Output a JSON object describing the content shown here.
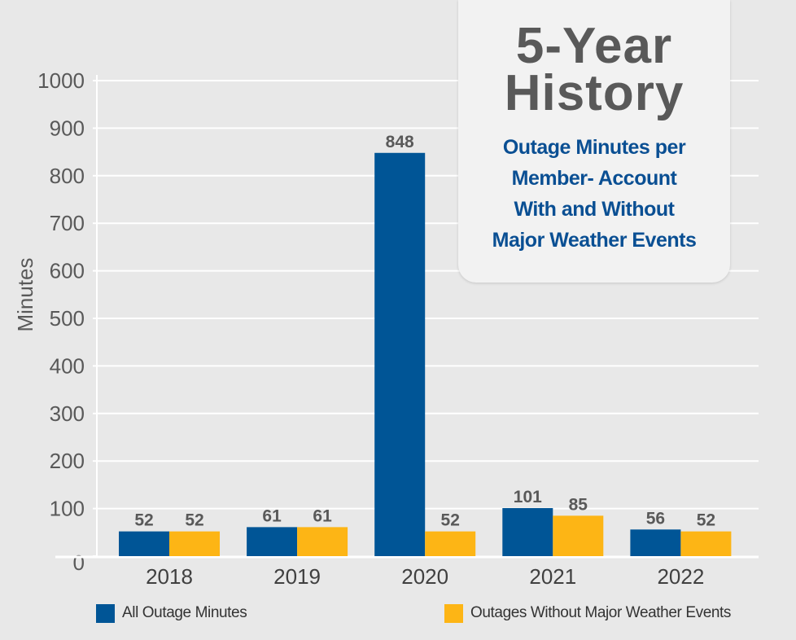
{
  "title": {
    "line1": "5-Year",
    "line2": "History",
    "subtitle_lines": [
      "Outage Minutes per",
      "Member- Account",
      "With and Without",
      "Major Weather Events"
    ]
  },
  "colors": {
    "all_outage": "#005596",
    "without_weather": "#fdb515",
    "background": "#e8e8e8",
    "grid": "#ffffff",
    "label_text": "#595959"
  },
  "chart_data": {
    "type": "bar",
    "categories": [
      "2018",
      "2019",
      "2020",
      "2021",
      "2022"
    ],
    "series": [
      {
        "name": "All Outage Minutes",
        "values": [
          52,
          61,
          848,
          101,
          56
        ]
      },
      {
        "name": "Outages Without Major Weather Events",
        "values": [
          52,
          61,
          52,
          85,
          52
        ]
      }
    ],
    "ylabel": "Minutes",
    "xlabel": "",
    "ylim": [
      0,
      1000
    ],
    "yticks": [
      0,
      100,
      200,
      300,
      400,
      500,
      600,
      700,
      800,
      900,
      1000
    ],
    "grid": true,
    "legend_position": "bottom"
  }
}
